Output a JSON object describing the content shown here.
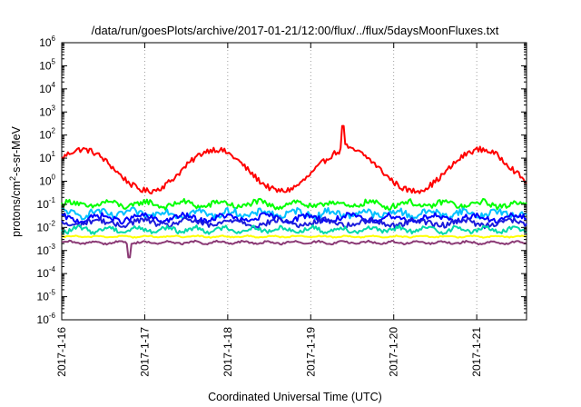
{
  "chart_data": {
    "type": "line",
    "title": "/data/run/goesPlots/archive/2017-01-21/12:00/flux/../flux/5daysMoonFluxes.txt",
    "xlabel": "Coordinated Universal Time (UTC)",
    "ylabel": {
      "base": "protons/cm",
      "sup": "2",
      "rest": "-s-sr-MeV"
    },
    "y_scale": "log",
    "ylim_exp": [
      -6,
      6
    ],
    "y_ticks": [
      {
        "base": "10",
        "exp": "6"
      },
      {
        "base": "10",
        "exp": "5"
      },
      {
        "base": "10",
        "exp": "4"
      },
      {
        "base": "10",
        "exp": "3"
      },
      {
        "base": "10",
        "exp": "2"
      },
      {
        "base": "10",
        "exp": "1"
      },
      {
        "base": "10",
        "exp": "0"
      },
      {
        "base": "10",
        "exp": "-1"
      },
      {
        "base": "10",
        "exp": "-2"
      },
      {
        "base": "10",
        "exp": "-3"
      },
      {
        "base": "10",
        "exp": "-4"
      },
      {
        "base": "10",
        "exp": "-5"
      },
      {
        "base": "10",
        "exp": "-6"
      }
    ],
    "xlim_days": [
      0,
      5.6
    ],
    "x_ticks": [
      {
        "label": "2017-1-16",
        "day": 0
      },
      {
        "label": "2017-1-17",
        "day": 1
      },
      {
        "label": "2017-1-18",
        "day": 2
      },
      {
        "label": "2017-1-19",
        "day": 3
      },
      {
        "label": "2017-1-20",
        "day": 4
      },
      {
        "label": "2017-1-21",
        "day": 5
      }
    ],
    "grid": "vertical dotted",
    "legend": "none",
    "series": [
      {
        "color": "#ff0000",
        "base": 3,
        "amp": 0.9,
        "period": 1.6,
        "phase": 0.6,
        "noise": 0.25,
        "spikes": [
          {
            "day": 3.38,
            "value": 250
          },
          {
            "day": 3.42,
            "value": 40
          }
        ]
      },
      {
        "color": "#00ff00",
        "base": 0.1,
        "amp": 0.12,
        "period": 0.45,
        "phase": 0,
        "noise": 0.25
      },
      {
        "color": "#00c0ff",
        "base": 0.04,
        "amp": 0.12,
        "period": 0.4,
        "phase": 1,
        "noise": 0.3
      },
      {
        "color": "#0000ff",
        "base": 0.025,
        "amp": 0.12,
        "period": 0.5,
        "phase": 2,
        "noise": 0.25
      },
      {
        "color": "#1c1cdc",
        "base": 0.016,
        "amp": 0.12,
        "period": 0.55,
        "phase": 3,
        "noise": 0.25
      },
      {
        "color": "#00d8a8",
        "base": 0.008,
        "amp": 0.1,
        "period": 0.35,
        "phase": 4,
        "noise": 0.2
      },
      {
        "color": "#ffff00",
        "base": 0.004,
        "amp": 0.03,
        "period": 0.3,
        "phase": 5,
        "noise": 0.05
      },
      {
        "color": "#8b3a75",
        "base": 0.0022,
        "amp": 0.05,
        "period": 0.3,
        "phase": 6,
        "noise": 0.08,
        "spikes": [
          {
            "day": 0.82,
            "value": 0.0005
          }
        ]
      }
    ]
  }
}
